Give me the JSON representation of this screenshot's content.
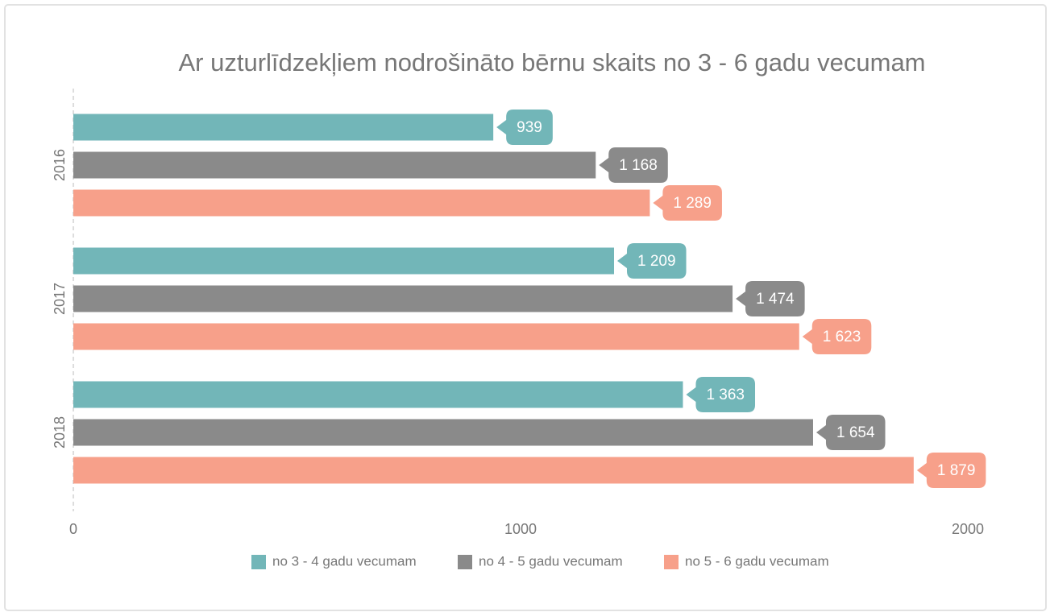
{
  "chart_data": {
    "type": "bar",
    "orientation": "horizontal",
    "title": "Ar uzturlīdzekļiem nodrošināto bērnu skaits no 3 - 6 gadu vecumam",
    "categories": [
      "2016",
      "2017",
      "2018"
    ],
    "series": [
      {
        "name": "no 3 - 4 gadu vecumam",
        "color": "#72b6b8",
        "values": [
          939,
          1209,
          1363
        ],
        "value_labels": [
          "939",
          "1 209",
          "1 363"
        ]
      },
      {
        "name": "no 4 - 5 gadu vecumam",
        "color": "#8a8a8a",
        "values": [
          1168,
          1474,
          1654
        ],
        "value_labels": [
          "1 168",
          "1 474",
          "1 654"
        ]
      },
      {
        "name": "no 5 - 6 gadu vecumam",
        "color": "#f7a08a",
        "values": [
          1289,
          1623,
          1879
        ],
        "value_labels": [
          "1 289",
          "1 623",
          "1 879"
        ]
      }
    ],
    "xlim": [
      0,
      2000
    ],
    "xticks": [
      0,
      1000,
      2000
    ],
    "grid": false,
    "legend": "bottom"
  }
}
